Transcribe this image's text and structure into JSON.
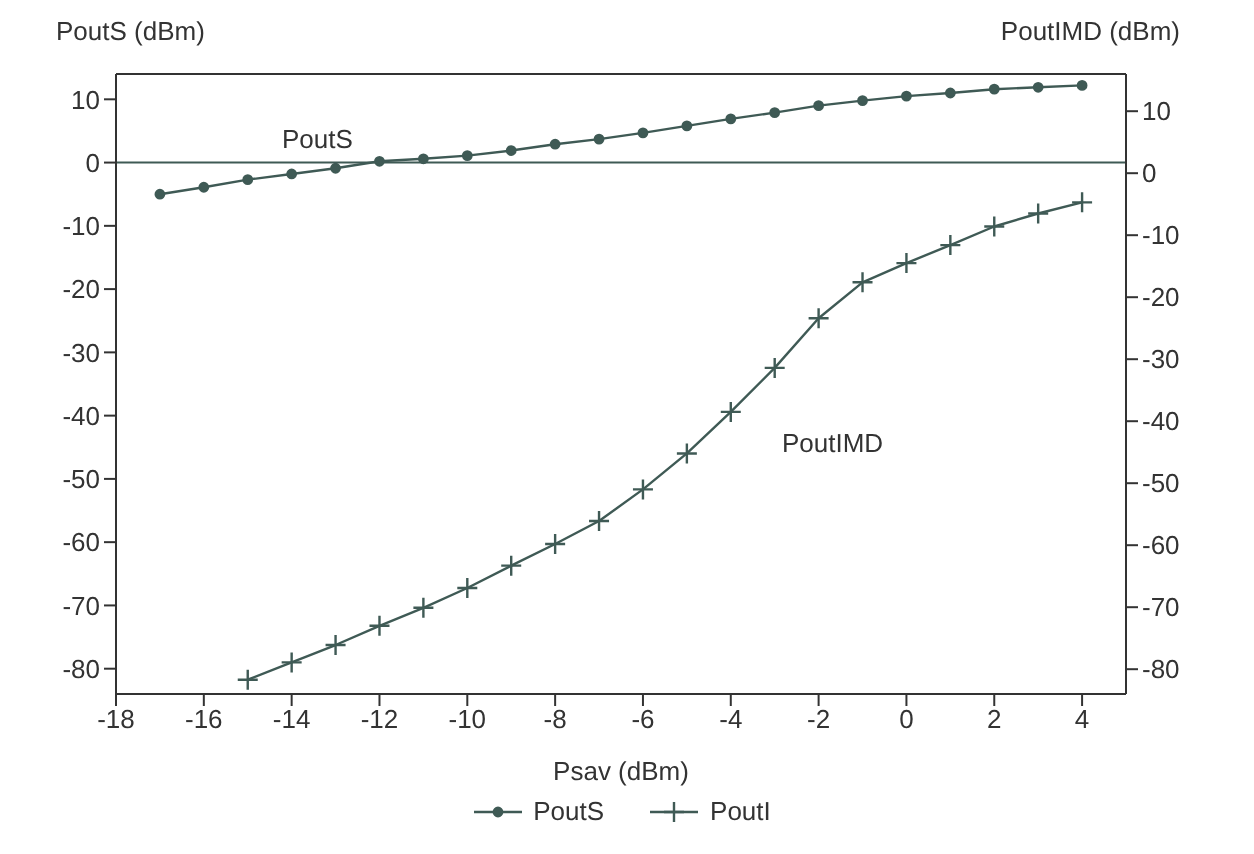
{
  "chart_data": {
    "type": "line",
    "xlabel": "Psav (dBm)",
    "ylabel": "PoutS (dBm)",
    "y2label": "PoutIMD (dBm)",
    "xlim": [
      -18,
      5
    ],
    "xticks": [
      -18,
      -16,
      -14,
      -12,
      -10,
      -8,
      -6,
      -4,
      -2,
      0,
      2,
      4
    ],
    "ylim": [
      -84,
      14
    ],
    "yticks": [
      -80,
      -70,
      -60,
      -50,
      -40,
      -30,
      -20,
      -10,
      0,
      10
    ],
    "y2lim": [
      -84,
      16
    ],
    "y2ticks": [
      -80,
      -70,
      -60,
      -50,
      -40,
      -30,
      -20,
      -10,
      0,
      10
    ],
    "legend": "bottom",
    "line_style": "solid",
    "ref_lines": [
      {
        "axis": "y",
        "value": 0,
        "color": "#3f5a55"
      }
    ],
    "annotations": [
      "PoutS",
      "PoutIMD"
    ],
    "series": [
      {
        "name": "PoutS",
        "color": "#3f5a55",
        "marker": "circle",
        "x": [
          -17,
          -16,
          -15,
          -14,
          -13,
          -12,
          -11,
          -10,
          -9,
          -8,
          -7,
          -6,
          -5,
          -4,
          -3,
          -2,
          -1,
          0,
          1,
          2,
          3,
          4
        ],
        "values": [
          -5,
          -3.9,
          -2.7,
          -1.8,
          -0.9,
          0.2,
          0.6,
          1.1,
          1.9,
          2.9,
          3.7,
          4.7,
          5.8,
          6.9,
          7.9,
          9,
          9.8,
          10.5,
          11,
          11.6,
          11.9,
          12.2
        ]
      },
      {
        "name": "PoutI",
        "color": "#3f5a55",
        "marker": "cross",
        "axis": "y2",
        "x": [
          -15,
          -14,
          -13,
          -12,
          -11,
          -10,
          -9,
          -8,
          -7,
          -6,
          -5,
          -4,
          -3,
          -2,
          -1,
          0,
          1,
          2,
          3,
          4
        ],
        "values": [
          -81.7,
          -78.9,
          -76.1,
          -73,
          -70.1,
          -66.9,
          -63.3,
          -59.8,
          -56.1,
          -51,
          -45.2,
          -38.5,
          -31.4,
          -23.4,
          -17.6,
          -14.5,
          -11.6,
          -8.6,
          -6.5,
          -4.7
        ]
      }
    ]
  }
}
